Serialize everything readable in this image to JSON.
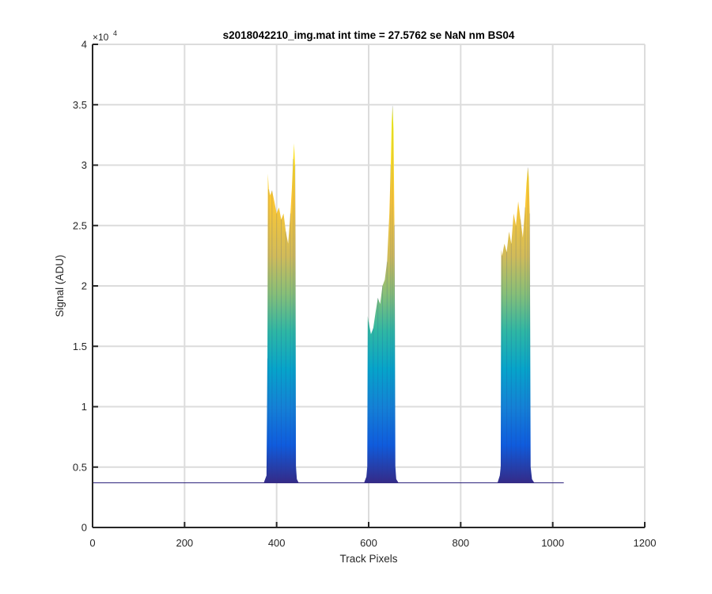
{
  "chart_data": {
    "type": "area",
    "title": "s2018042210_img.mat int time = 27.5762 se  NaN nm BS04",
    "xlabel": "Track Pixels",
    "ylabel": "Signal (ADU)",
    "xlim": [
      0,
      1200
    ],
    "ylim": [
      0,
      40000
    ],
    "y_exponent_label": "×10",
    "y_exponent_power": "4",
    "grid": true,
    "colormap": "parula",
    "x_ticks": [
      0,
      200,
      400,
      600,
      800,
      1000,
      1200
    ],
    "x_tick_labels": [
      "0",
      "200",
      "400",
      "600",
      "800",
      "1000",
      "1200"
    ],
    "y_ticks": [
      0,
      5000,
      10000,
      15000,
      20000,
      25000,
      30000,
      35000,
      40000
    ],
    "y_tick_labels": [
      "0",
      "0.5",
      "1",
      "1.5",
      "2",
      "2.5",
      "3",
      "3.5",
      "4"
    ],
    "baseline": 3700,
    "x_range": [
      1,
      1024
    ],
    "series": [
      {
        "x": [
          372,
          378,
          380,
          381,
          383,
          386,
          390,
          395,
          400,
          405,
          410,
          415,
          420,
          425,
          430,
          433,
          436,
          438,
          440,
          441,
          442,
          444,
          448
        ],
        "y": [
          3700,
          4300,
          14000,
          29300,
          28000,
          27500,
          27900,
          27000,
          26000,
          26500,
          25500,
          26000,
          24500,
          23500,
          26000,
          28000,
          30500,
          31800,
          30000,
          24000,
          5000,
          4000,
          3700
        ]
      },
      {
        "x": [
          590,
          595,
          597,
          598,
          600,
          605,
          610,
          615,
          620,
          625,
          630,
          635,
          640,
          645,
          648,
          650,
          652,
          654,
          656,
          657,
          658,
          660,
          665
        ],
        "y": [
          3700,
          4200,
          5000,
          17500,
          17000,
          16000,
          16500,
          17800,
          19000,
          18500,
          20000,
          20500,
          22000,
          26000,
          30000,
          33500,
          34900,
          33000,
          25000,
          18000,
          5000,
          4000,
          3700
        ]
      },
      {
        "x": [
          880,
          885,
          887,
          888,
          890,
          895,
          900,
          905,
          910,
          915,
          920,
          925,
          930,
          935,
          940,
          943,
          946,
          948,
          950,
          951,
          952,
          955,
          960
        ],
        "y": [
          3700,
          4300,
          5000,
          23000,
          22500,
          23500,
          22800,
          24500,
          23500,
          26000,
          25000,
          27000,
          25500,
          24000,
          26500,
          28500,
          29800,
          29000,
          26000,
          17000,
          5000,
          4000,
          3700
        ]
      }
    ]
  }
}
